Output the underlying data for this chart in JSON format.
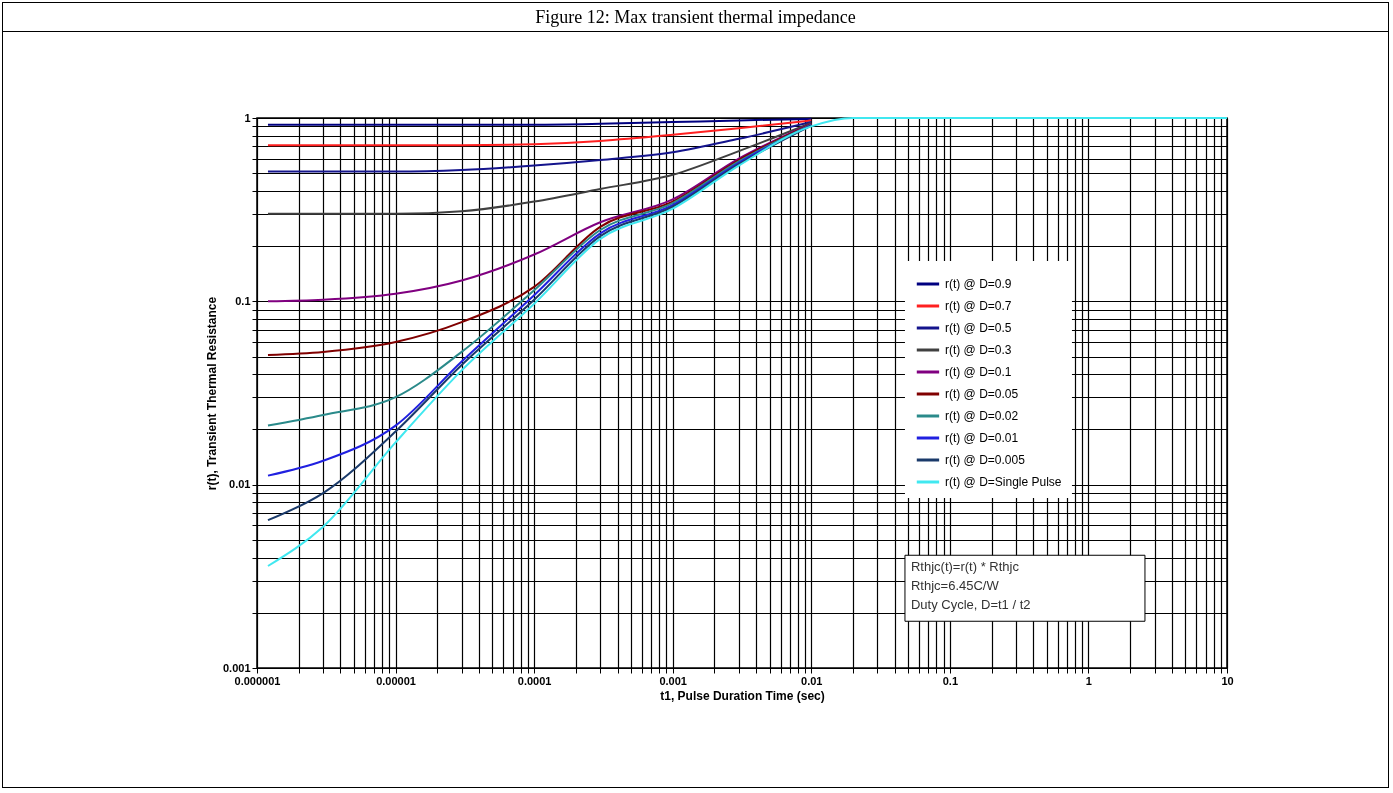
{
  "chart_data": {
    "type": "line",
    "title": "Figure 12: Max transient thermal impedance",
    "xlabel": "t1, Pulse Duration Time (sec)",
    "ylabel": "r(t), Transient Thermal Resistance",
    "log": "xy",
    "grid": true,
    "legend": "right",
    "line_style": "solid",
    "marker": "none",
    "x": [
      1.2e-06,
      3e-06,
      1e-05,
      3e-05,
      0.0001,
      0.0003,
      0.001,
      0.003,
      0.01,
      0.02,
      0.1,
      1,
      10
    ],
    "xlim": [
      1e-06,
      10
    ],
    "ylim": [
      0.001,
      1
    ],
    "xticks": [
      {
        "value": 1e-06,
        "label": "0.000001"
      },
      {
        "value": 2e-06,
        "label": null
      },
      {
        "value": 3e-06,
        "label": null
      },
      {
        "value": 4e-06,
        "label": null
      },
      {
        "value": 5e-06,
        "label": null
      },
      {
        "value": 6e-06,
        "label": null
      },
      {
        "value": 7e-06,
        "label": null
      },
      {
        "value": 8e-06,
        "label": null
      },
      {
        "value": 9e-06,
        "label": null
      },
      {
        "value": 1e-05,
        "label": "0.00001"
      },
      {
        "value": 2e-05,
        "label": null
      },
      {
        "value": 3e-05,
        "label": null
      },
      {
        "value": 4e-05,
        "label": null
      },
      {
        "value": 5e-05,
        "label": null
      },
      {
        "value": 6e-05,
        "label": null
      },
      {
        "value": 7e-05,
        "label": null
      },
      {
        "value": 8e-05,
        "label": null
      },
      {
        "value": 9e-05,
        "label": null
      },
      0.0001,
      {
        "value": 0.0002,
        "label": null
      },
      {
        "value": 0.0003,
        "label": null
      },
      {
        "value": 0.0004,
        "label": null
      },
      {
        "value": 0.0005,
        "label": null
      },
      {
        "value": 0.0006,
        "label": null
      },
      {
        "value": 0.0007,
        "label": null
      },
      {
        "value": 0.0008,
        "label": null
      },
      {
        "value": 0.0009,
        "label": null
      },
      0.001,
      {
        "value": 0.002,
        "label": null
      },
      {
        "value": 0.003,
        "label": null
      },
      {
        "value": 0.004,
        "label": null
      },
      {
        "value": 0.005,
        "label": null
      },
      {
        "value": 0.006,
        "label": null
      },
      {
        "value": 0.007,
        "label": null
      },
      {
        "value": 0.008,
        "label": null
      },
      {
        "value": 0.009,
        "label": null
      },
      0.01,
      {
        "value": 0.02,
        "label": null
      },
      {
        "value": 0.03,
        "label": null
      },
      {
        "value": 0.04,
        "label": null
      },
      {
        "value": 0.05,
        "label": null
      },
      {
        "value": 0.06,
        "label": null
      },
      {
        "value": 0.07,
        "label": null
      },
      {
        "value": 0.08,
        "label": null
      },
      {
        "value": 0.09,
        "label": null
      },
      0.1,
      {
        "value": 0.2,
        "label": null
      },
      {
        "value": 0.3,
        "label": null
      },
      {
        "value": 0.4,
        "label": null
      },
      {
        "value": 0.5,
        "label": null
      },
      {
        "value": 0.6,
        "label": null
      },
      {
        "value": 0.7,
        "label": null
      },
      {
        "value": 0.8,
        "label": null
      },
      {
        "value": 0.9,
        "label": null
      },
      1,
      {
        "value": 2,
        "label": null
      },
      {
        "value": 3,
        "label": null
      },
      {
        "value": 4,
        "label": null
      },
      {
        "value": 5,
        "label": null
      },
      {
        "value": 6,
        "label": null
      },
      {
        "value": 7,
        "label": null
      },
      {
        "value": 8,
        "label": null
      },
      {
        "value": 9,
        "label": null
      },
      10
    ],
    "yticks": [
      0.001,
      {
        "value": 0.002,
        "label": null
      },
      {
        "value": 0.003,
        "label": null
      },
      {
        "value": 0.004,
        "label": null
      },
      {
        "value": 0.005,
        "label": null
      },
      {
        "value": 0.006,
        "label": null
      },
      {
        "value": 0.007,
        "label": null
      },
      {
        "value": 0.008,
        "label": null
      },
      {
        "value": 0.009,
        "label": null
      },
      0.01,
      {
        "value": 0.02,
        "label": null
      },
      {
        "value": 0.03,
        "label": null
      },
      {
        "value": 0.04,
        "label": null
      },
      {
        "value": 0.05,
        "label": null
      },
      {
        "value": 0.06,
        "label": null
      },
      {
        "value": 0.07,
        "label": null
      },
      {
        "value": 0.08,
        "label": null
      },
      {
        "value": 0.09,
        "label": null
      },
      0.1,
      {
        "value": 0.2,
        "label": null
      },
      {
        "value": 0.3,
        "label": null
      },
      {
        "value": 0.4,
        "label": null
      },
      {
        "value": 0.5,
        "label": null
      },
      {
        "value": 0.6,
        "label": null
      },
      {
        "value": 0.7,
        "label": null
      },
      {
        "value": 0.8,
        "label": null
      },
      {
        "value": 0.9,
        "label": null
      },
      1
    ],
    "series": [
      {
        "name": "r(t) @ D=0.9",
        "color": "#000080",
        "values": [
          0.92,
          0.92,
          0.92,
          0.92,
          0.92,
          0.93,
          0.95,
          0.97,
          0.99,
          null,
          null,
          null,
          null
        ]
      },
      {
        "name": "r(t) @ D=0.7",
        "color": "#ff2020",
        "values": [
          0.71,
          0.71,
          0.71,
          0.71,
          0.72,
          0.75,
          0.81,
          0.88,
          0.97,
          null,
          null,
          null,
          null
        ]
      },
      {
        "name": "r(t) @ D=0.5",
        "color": "#14148c",
        "values": [
          0.51,
          0.51,
          0.51,
          0.52,
          0.55,
          0.59,
          0.65,
          0.77,
          0.95,
          null,
          null,
          null,
          null
        ]
      },
      {
        "name": "r(t) @ D=0.3",
        "color": "#404040",
        "values": [
          0.3,
          0.3,
          0.3,
          0.31,
          0.35,
          0.41,
          0.49,
          0.66,
          0.94,
          null,
          null,
          null,
          null
        ]
      },
      {
        "name": "r(t) @ D=0.1",
        "color": "#800080",
        "values": [
          0.1,
          0.102,
          0.11,
          0.13,
          0.18,
          0.27,
          0.36,
          0.6,
          0.93,
          null,
          null,
          null,
          null
        ]
      },
      {
        "name": "r(t) @ D=0.05",
        "color": "#800000",
        "values": [
          0.051,
          0.053,
          0.06,
          0.077,
          0.12,
          0.255,
          0.35,
          0.59,
          0.925,
          null,
          null,
          null,
          null
        ]
      },
      {
        "name": "r(t) @ D=0.02",
        "color": "#2a8a8a",
        "values": [
          0.021,
          0.024,
          0.03,
          0.053,
          0.115,
          0.245,
          0.343,
          0.58,
          0.92,
          null,
          null,
          null,
          null
        ]
      },
      {
        "name": "r(t) @ D=0.01",
        "color": "#2020e0",
        "values": [
          0.0112,
          0.0135,
          0.021,
          0.047,
          0.108,
          0.235,
          0.335,
          0.57,
          0.915,
          null,
          null,
          null,
          null
        ]
      },
      {
        "name": "r(t) @ D=0.005",
        "color": "#1a3a6a",
        "values": [
          0.0064,
          0.009,
          0.0195,
          0.045,
          0.102,
          0.227,
          0.328,
          0.56,
          0.91,
          null,
          null,
          null,
          null
        ]
      },
      {
        "name": "r(t) @ D=Single Pulse",
        "color": "#40e8f0",
        "values": [
          0.0036,
          0.0059,
          0.017,
          0.042,
          0.097,
          0.219,
          0.32,
          0.55,
          0.9,
          1,
          1,
          1,
          1
        ]
      }
    ],
    "annotations": [
      "Rthjc(t)=r(t) * Rthjc",
      "Rthjc=6.45C/W",
      "Duty Cycle, D=t1 / t2"
    ]
  }
}
